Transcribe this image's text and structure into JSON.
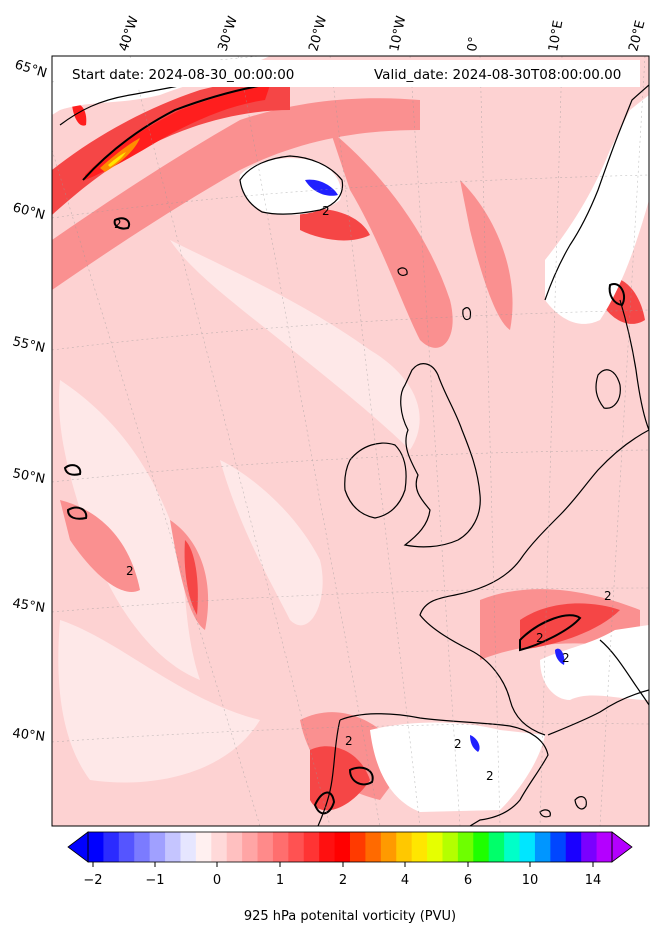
{
  "header": {
    "start_date": "Start date: 2024-08-30_00:00:00",
    "valid_date": "Valid_date: 2024-08-30T08:00:00.00"
  },
  "map": {
    "longitude_labels": [
      "40°W",
      "30°W",
      "20°W",
      "10°W",
      "0°",
      "10°E",
      "20°E"
    ],
    "latitude_labels": [
      "65°N",
      "60°N",
      "55°N",
      "50°N",
      "45°N",
      "40°N"
    ],
    "contour_label": "2",
    "field_colors": {
      "background_pink": "#fdd2d2",
      "light_pink": "#fee6e6",
      "mid_red": "#fa8080",
      "strong_red": "#f53c3c",
      "deep_red": "#ff1a1a",
      "orange": "#ff8c00",
      "yellow": "#ffee00",
      "land_white": "#ffffff",
      "blue": "#1a1aff"
    }
  },
  "colorbar": {
    "tick_labels": [
      "−2",
      "−1",
      "0",
      "1",
      "2",
      "4",
      "6",
      "10",
      "14"
    ],
    "label": "925 hPa potenital vorticity (PVU)",
    "colors": [
      "#0000ff",
      "#2b2bff",
      "#5555ff",
      "#7b7bff",
      "#a0a0ff",
      "#c5c5ff",
      "#e6e6ff",
      "#fff0f0",
      "#ffd9d9",
      "#ffc0c0",
      "#ffa5a5",
      "#ff8a8a",
      "#ff6e6e",
      "#ff5252",
      "#ff3434",
      "#ff1010",
      "#ff0000",
      "#ff3a00",
      "#ff6a00",
      "#ff9a00",
      "#ffc800",
      "#ffe600",
      "#e6ff00",
      "#b4ff00",
      "#6eff00",
      "#1eff00",
      "#00ff6a",
      "#00ffc8",
      "#00e6ff",
      "#0096ff",
      "#0046ff",
      "#1a00ff",
      "#7a00ff",
      "#b400ff"
    ]
  }
}
